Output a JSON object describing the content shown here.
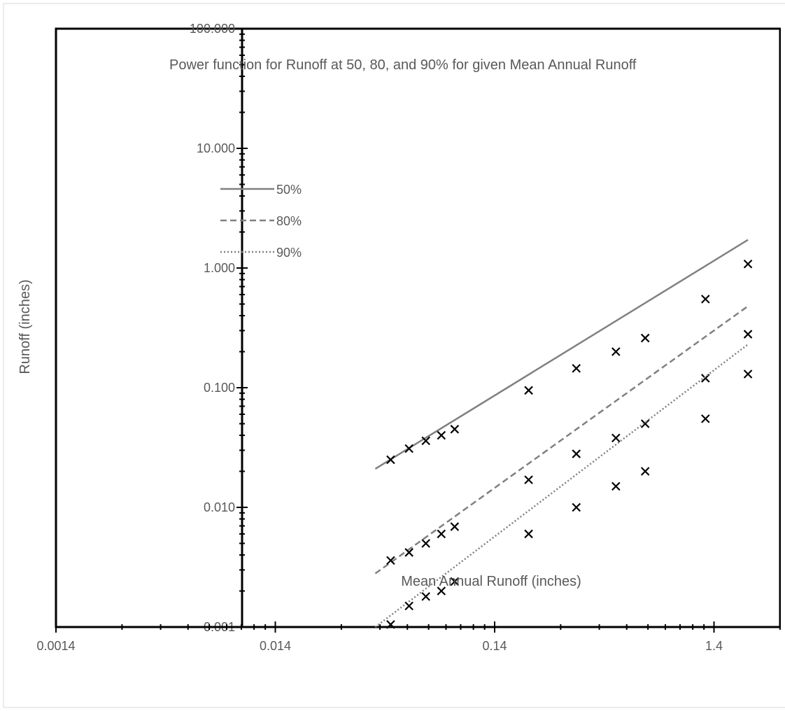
{
  "chart_data": {
    "type": "scatter",
    "title": "Power function for Runoff at 50, 80, and 90% for given Mean Annual Runoff",
    "xlabel": "Mean Annual Runoff (inches)",
    "ylabel": "Runoff (inches)",
    "x_scale": "log",
    "y_scale": "log",
    "xlim": [
      0.0014,
      2.0
    ],
    "ylim": [
      0.001,
      100
    ],
    "x_ticks": [
      "0.0014",
      "0.014",
      "0.14",
      "1.4"
    ],
    "y_ticks": [
      "0.001",
      "0.010",
      "0.100",
      "1.000",
      "10.000",
      "100.000"
    ],
    "legend_position": "left",
    "series": [
      {
        "name": "50%",
        "line_style": "solid",
        "color": "#808080",
        "fit_x": [
          0.04,
          2.0
        ],
        "fit_y": [
          0.021,
          1.72
        ],
        "x": [
          0.047,
          0.057,
          0.068,
          0.08,
          0.092,
          0.2,
          0.33,
          0.5,
          0.68,
          1.28,
          2.0
        ],
        "y": [
          0.025,
          0.031,
          0.036,
          0.04,
          0.045,
          0.095,
          0.145,
          0.2,
          0.26,
          0.55,
          1.08
        ]
      },
      {
        "name": "80%",
        "line_style": "dashed",
        "color": "#808080",
        "fit_x": [
          0.04,
          2.0
        ],
        "fit_y": [
          0.0028,
          0.48
        ],
        "x": [
          0.047,
          0.057,
          0.068,
          0.08,
          0.092,
          0.2,
          0.33,
          0.5,
          0.68,
          1.28,
          2.0
        ],
        "y": [
          0.0036,
          0.0042,
          0.005,
          0.006,
          0.0069,
          0.017,
          0.028,
          0.038,
          0.05,
          0.12,
          0.28
        ]
      },
      {
        "name": "90%",
        "line_style": "dotted",
        "color": "#808080",
        "fit_x": [
          0.04,
          2.0
        ],
        "fit_y": [
          0.001,
          0.23
        ],
        "x": [
          0.047,
          0.057,
          0.068,
          0.08,
          0.092,
          0.2,
          0.33,
          0.5,
          0.68,
          1.28,
          2.0
        ],
        "y": [
          0.00105,
          0.0015,
          0.0018,
          0.002,
          0.0024,
          0.006,
          0.01,
          0.015,
          0.02,
          0.055,
          0.13
        ]
      }
    ]
  }
}
